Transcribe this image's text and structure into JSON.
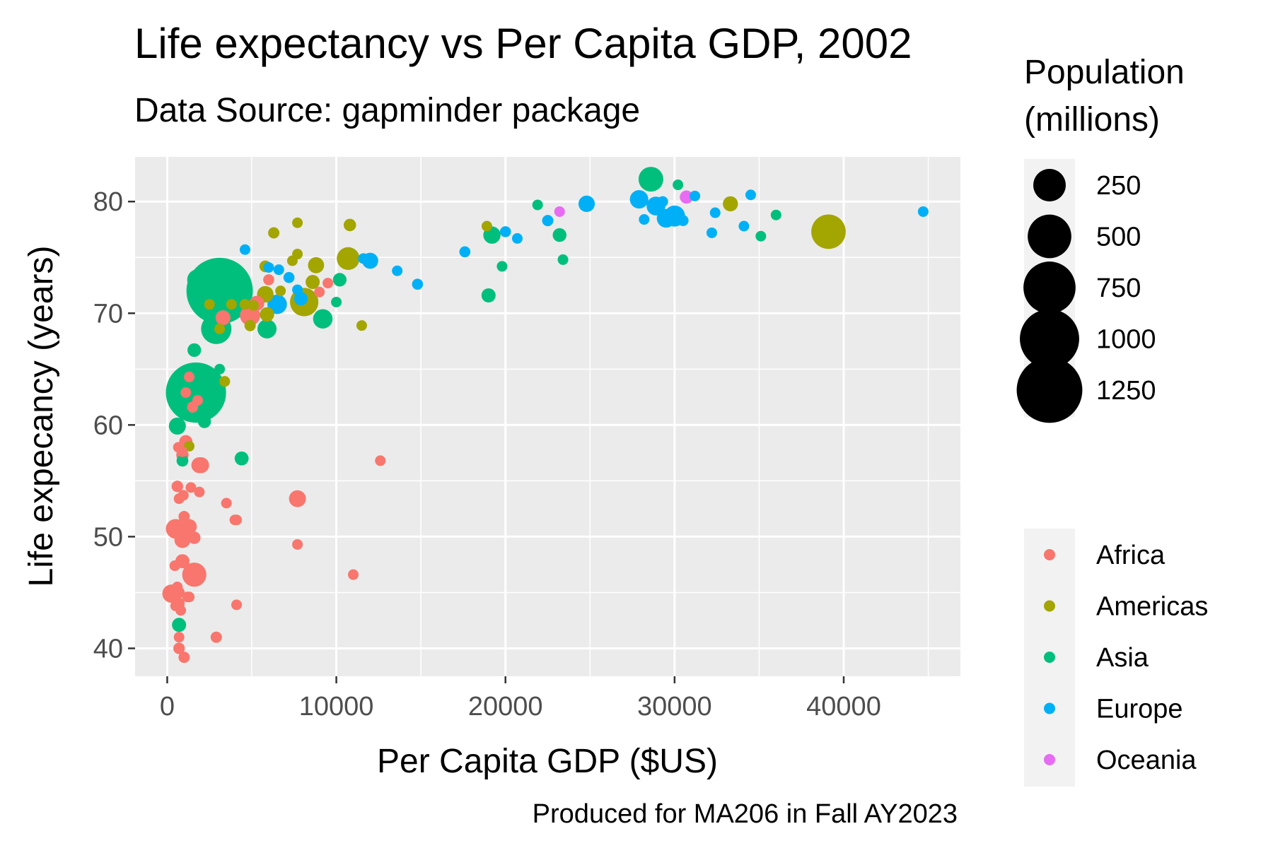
{
  "chart_data": {
    "type": "scatter",
    "title": "Life expectancy vs Per Capita GDP, 2002",
    "subtitle": "Data Source: gapminder package",
    "xlabel": "Per Capita GDP ($US)",
    "ylabel": "Life expecancy (years)",
    "caption": "Produced for MA206 in Fall AY2023",
    "xlim": [
      -1900,
      46900
    ],
    "ylim": [
      37.5,
      84
    ],
    "x_ticks": [
      0,
      10000,
      20000,
      30000,
      40000
    ],
    "x_tick_labels": [
      "0",
      "10000",
      "20000",
      "30000",
      "40000"
    ],
    "y_ticks": [
      40,
      50,
      60,
      70,
      80
    ],
    "y_tick_labels": [
      "40",
      "50",
      "60",
      "70",
      "80"
    ],
    "grid": true,
    "size_legend": {
      "title_lines": [
        "Population",
        "(millions)"
      ],
      "values": [
        250,
        500,
        750,
        1000,
        1250
      ],
      "labels": [
        "250",
        "500",
        "750",
        "1000",
        "1250"
      ]
    },
    "color_legend": {
      "placement": "right",
      "entries": [
        {
          "name": "Africa",
          "color": "#F8766D"
        },
        {
          "name": "Americas",
          "color": "#A3A500"
        },
        {
          "name": "Asia",
          "color": "#00BF7D"
        },
        {
          "name": "Europe",
          "color": "#00B0F6"
        },
        {
          "name": "Oceania",
          "color": "#E76BF3"
        }
      ]
    },
    "colors": {
      "panel_background": "#EBEBEB",
      "grid": "#FFFFFF",
      "tick_text": "#4D4D4D"
    },
    "series": [
      {
        "name": "Africa",
        "points": [
          {
            "x": 5300,
            "y": 70.9,
            "pop": 30
          },
          {
            "x": 2900,
            "y": 41.0,
            "pop": 11
          },
          {
            "x": 1400,
            "y": 54.4,
            "pop": 7
          },
          {
            "x": 11000,
            "y": 46.6,
            "pop": 2
          },
          {
            "x": 1100,
            "y": 50.6,
            "pop": 13
          },
          {
            "x": 450,
            "y": 47.4,
            "pop": 7
          },
          {
            "x": 1600,
            "y": 49.9,
            "pop": 16
          },
          {
            "x": 4000,
            "y": 51.5,
            "pop": 4
          },
          {
            "x": 1200,
            "y": 44.6,
            "pop": 4
          },
          {
            "x": 900,
            "y": 50.5,
            "pop": 9
          },
          {
            "x": 1100,
            "y": 62.9,
            "pop": 1
          },
          {
            "x": 250,
            "y": 44.9,
            "pop": 55
          },
          {
            "x": 3500,
            "y": 53.0,
            "pop": 3
          },
          {
            "x": 1600,
            "y": 46.8,
            "pop": 16
          },
          {
            "x": 1900,
            "y": 54.0,
            "pop": 1
          },
          {
            "x": 4900,
            "y": 69.8,
            "pop": 74
          },
          {
            "x": 7700,
            "y": 49.3,
            "pop": 1
          },
          {
            "x": 700,
            "y": 53.4,
            "pop": 4
          },
          {
            "x": 500,
            "y": 50.7,
            "pop": 68
          },
          {
            "x": 12600,
            "y": 56.8,
            "pop": 1
          },
          {
            "x": 660,
            "y": 58.0,
            "pop": 1
          },
          {
            "x": 1100,
            "y": 58.5,
            "pop": 20
          },
          {
            "x": 950,
            "y": 53.7,
            "pop": 9
          },
          {
            "x": 600,
            "y": 45.5,
            "pop": 1
          },
          {
            "x": 1300,
            "y": 50.9,
            "pop": 31
          },
          {
            "x": 1300,
            "y": 44.6,
            "pop": 2
          },
          {
            "x": 500,
            "y": 43.8,
            "pop": 3
          },
          {
            "x": 9500,
            "y": 72.7,
            "pop": 5
          },
          {
            "x": 900,
            "y": 57.3,
            "pop": 16
          },
          {
            "x": 700,
            "y": 45.0,
            "pop": 11
          },
          {
            "x": 1000,
            "y": 51.8,
            "pop": 11
          },
          {
            "x": 1800,
            "y": 62.2,
            "pop": 3
          },
          {
            "x": 9000,
            "y": 71.9,
            "pop": 1
          },
          {
            "x": 3300,
            "y": 69.6,
            "pop": 30
          },
          {
            "x": 650,
            "y": 44.0,
            "pop": 18
          },
          {
            "x": 4100,
            "y": 51.5,
            "pop": 2
          },
          {
            "x": 600,
            "y": 54.5,
            "pop": 12
          },
          {
            "x": 1600,
            "y": 46.6,
            "pop": 119
          },
          {
            "x": 800,
            "y": 43.4,
            "pop": 8
          },
          {
            "x": 1300,
            "y": 64.3,
            "pop": 1
          },
          {
            "x": 1500,
            "y": 61.6,
            "pop": 10
          },
          {
            "x": 700,
            "y": 41.0,
            "pop": 5
          },
          {
            "x": 2000,
            "y": 56.4,
            "pop": 37
          },
          {
            "x": 7700,
            "y": 53.4,
            "pop": 44
          },
          {
            "x": 1900,
            "y": 56.4,
            "pop": 37
          },
          {
            "x": 4100,
            "y": 43.9,
            "pop": 1
          },
          {
            "x": 900,
            "y": 49.7,
            "pop": 37
          },
          {
            "x": 900,
            "y": 57.6,
            "pop": 5
          },
          {
            "x": 6000,
            "y": 73.0,
            "pop": 10
          },
          {
            "x": 900,
            "y": 47.8,
            "pop": 25
          },
          {
            "x": 1000,
            "y": 39.2,
            "pop": 11
          },
          {
            "x": 700,
            "y": 40.0,
            "pop": 12
          }
        ]
      },
      {
        "name": "Americas",
        "points": [
          {
            "x": 8800,
            "y": 74.3,
            "pop": 38
          },
          {
            "x": 3400,
            "y": 63.9,
            "pop": 9
          },
          {
            "x": 8100,
            "y": 71.0,
            "pop": 180
          },
          {
            "x": 33300,
            "y": 79.8,
            "pop": 31
          },
          {
            "x": 10800,
            "y": 77.9,
            "pop": 16
          },
          {
            "x": 5800,
            "y": 71.7,
            "pop": 41
          },
          {
            "x": 7700,
            "y": 78.1,
            "pop": 4
          },
          {
            "x": 6300,
            "y": 77.2,
            "pop": 11
          },
          {
            "x": 4600,
            "y": 70.8,
            "pop": 9
          },
          {
            "x": 5800,
            "y": 74.2,
            "pop": 13
          },
          {
            "x": 5100,
            "y": 70.7,
            "pop": 6
          },
          {
            "x": 4900,
            "y": 68.9,
            "pop": 11
          },
          {
            "x": 1300,
            "y": 58.1,
            "pop": 8
          },
          {
            "x": 3100,
            "y": 68.6,
            "pop": 7
          },
          {
            "x": 6700,
            "y": 72.0,
            "pop": 3
          },
          {
            "x": 10700,
            "y": 74.9,
            "pop": 102
          },
          {
            "x": 2500,
            "y": 70.8,
            "pop": 5
          },
          {
            "x": 7400,
            "y": 74.7,
            "pop": 3
          },
          {
            "x": 3800,
            "y": 70.8,
            "pop": 6
          },
          {
            "x": 5900,
            "y": 69.9,
            "pop": 27
          },
          {
            "x": 18900,
            "y": 77.8,
            "pop": 4
          },
          {
            "x": 11500,
            "y": 68.9,
            "pop": 1
          },
          {
            "x": 39100,
            "y": 77.3,
            "pop": 288
          },
          {
            "x": 7700,
            "y": 75.3,
            "pop": 3
          },
          {
            "x": 8600,
            "y": 72.8,
            "pop": 25
          }
        ]
      },
      {
        "name": "Asia",
        "points": [
          {
            "x": 700,
            "y": 42.1,
            "pop": 25
          },
          {
            "x": 23400,
            "y": 74.8,
            "pop": 1
          },
          {
            "x": 1100,
            "y": 62.0,
            "pop": 135
          },
          {
            "x": 900,
            "y": 56.8,
            "pop": 13
          },
          {
            "x": 3100,
            "y": 72.0,
            "pop": 1280
          },
          {
            "x": 30200,
            "y": 81.5,
            "pop": 7
          },
          {
            "x": 1700,
            "y": 62.9,
            "pop": 1034
          },
          {
            "x": 2900,
            "y": 68.6,
            "pop": 212
          },
          {
            "x": 9200,
            "y": 69.5,
            "pop": 66
          },
          {
            "x": 4400,
            "y": 57.0,
            "pop": 24
          },
          {
            "x": 21900,
            "y": 79.7,
            "pop": 6
          },
          {
            "x": 28600,
            "y": 82.0,
            "pop": 127
          },
          {
            "x": 3800,
            "y": 72.5,
            "pop": 5
          },
          {
            "x": 1600,
            "y": 66.7,
            "pop": 22
          },
          {
            "x": 19200,
            "y": 77.0,
            "pop": 47
          },
          {
            "x": 35100,
            "y": 76.9,
            "pop": 2
          },
          {
            "x": 10000,
            "y": 71.0,
            "pop": 4
          },
          {
            "x": 10200,
            "y": 73.0,
            "pop": 22
          },
          {
            "x": 3100,
            "y": 65.0,
            "pop": 2
          },
          {
            "x": 600,
            "y": 59.9,
            "pop": 45
          },
          {
            "x": 1100,
            "y": 61.3,
            "pop": 25
          },
          {
            "x": 19800,
            "y": 74.2,
            "pop": 2
          },
          {
            "x": 2100,
            "y": 63.6,
            "pop": 153
          },
          {
            "x": 2700,
            "y": 70.3,
            "pop": 82
          },
          {
            "x": 19000,
            "y": 71.6,
            "pop": 25
          },
          {
            "x": 36000,
            "y": 78.8,
            "pop": 4
          },
          {
            "x": 1700,
            "y": 73.0,
            "pop": 19
          },
          {
            "x": 4100,
            "y": 73.1,
            "pop": 18
          },
          {
            "x": 23200,
            "y": 77.0,
            "pop": 23
          },
          {
            "x": 5900,
            "y": 68.6,
            "pop": 63
          },
          {
            "x": 1800,
            "y": 73.0,
            "pop": 81
          },
          {
            "x": 4500,
            "y": 72.4,
            "pop": 3
          },
          {
            "x": 2200,
            "y": 60.3,
            "pop": 19
          }
        ]
      },
      {
        "name": "Europe",
        "points": [
          {
            "x": 4600,
            "y": 75.7,
            "pop": 3
          },
          {
            "x": 32400,
            "y": 79.0,
            "pop": 8
          },
          {
            "x": 30500,
            "y": 78.3,
            "pop": 10
          },
          {
            "x": 6000,
            "y": 74.1,
            "pop": 4
          },
          {
            "x": 7700,
            "y": 72.1,
            "pop": 8
          },
          {
            "x": 11600,
            "y": 74.9,
            "pop": 4
          },
          {
            "x": 17600,
            "y": 75.5,
            "pop": 10
          },
          {
            "x": 32200,
            "y": 77.2,
            "pop": 5
          },
          {
            "x": 28200,
            "y": 78.4,
            "pop": 5
          },
          {
            "x": 28900,
            "y": 79.6,
            "pop": 60
          },
          {
            "x": 30000,
            "y": 78.7,
            "pop": 82
          },
          {
            "x": 22500,
            "y": 78.3,
            "pop": 11
          },
          {
            "x": 14800,
            "y": 72.6,
            "pop": 10
          },
          {
            "x": 31200,
            "y": 80.5,
            "pop": 1
          },
          {
            "x": 34100,
            "y": 77.8,
            "pop": 4
          },
          {
            "x": 27900,
            "y": 80.2,
            "pop": 57
          },
          {
            "x": 6600,
            "y": 73.9,
            "pop": 1
          },
          {
            "x": 30000,
            "y": 78.5,
            "pop": 16
          },
          {
            "x": 44700,
            "y": 79.1,
            "pop": 5
          },
          {
            "x": 12000,
            "y": 74.7,
            "pop": 38
          },
          {
            "x": 20000,
            "y": 77.3,
            "pop": 10
          },
          {
            "x": 7900,
            "y": 71.3,
            "pop": 22
          },
          {
            "x": 7200,
            "y": 73.2,
            "pop": 10
          },
          {
            "x": 13600,
            "y": 73.8,
            "pop": 5
          },
          {
            "x": 20700,
            "y": 76.7,
            "pop": 2
          },
          {
            "x": 24800,
            "y": 79.8,
            "pop": 40
          },
          {
            "x": 29300,
            "y": 80.0,
            "pop": 9
          },
          {
            "x": 34500,
            "y": 80.6,
            "pop": 7
          },
          {
            "x": 6500,
            "y": 70.8,
            "pop": 67
          },
          {
            "x": 29500,
            "y": 78.5,
            "pop": 59
          }
        ]
      },
      {
        "name": "Oceania",
        "points": [
          {
            "x": 30700,
            "y": 80.4,
            "pop": 20
          },
          {
            "x": 23200,
            "y": 79.1,
            "pop": 4
          }
        ]
      }
    ]
  }
}
